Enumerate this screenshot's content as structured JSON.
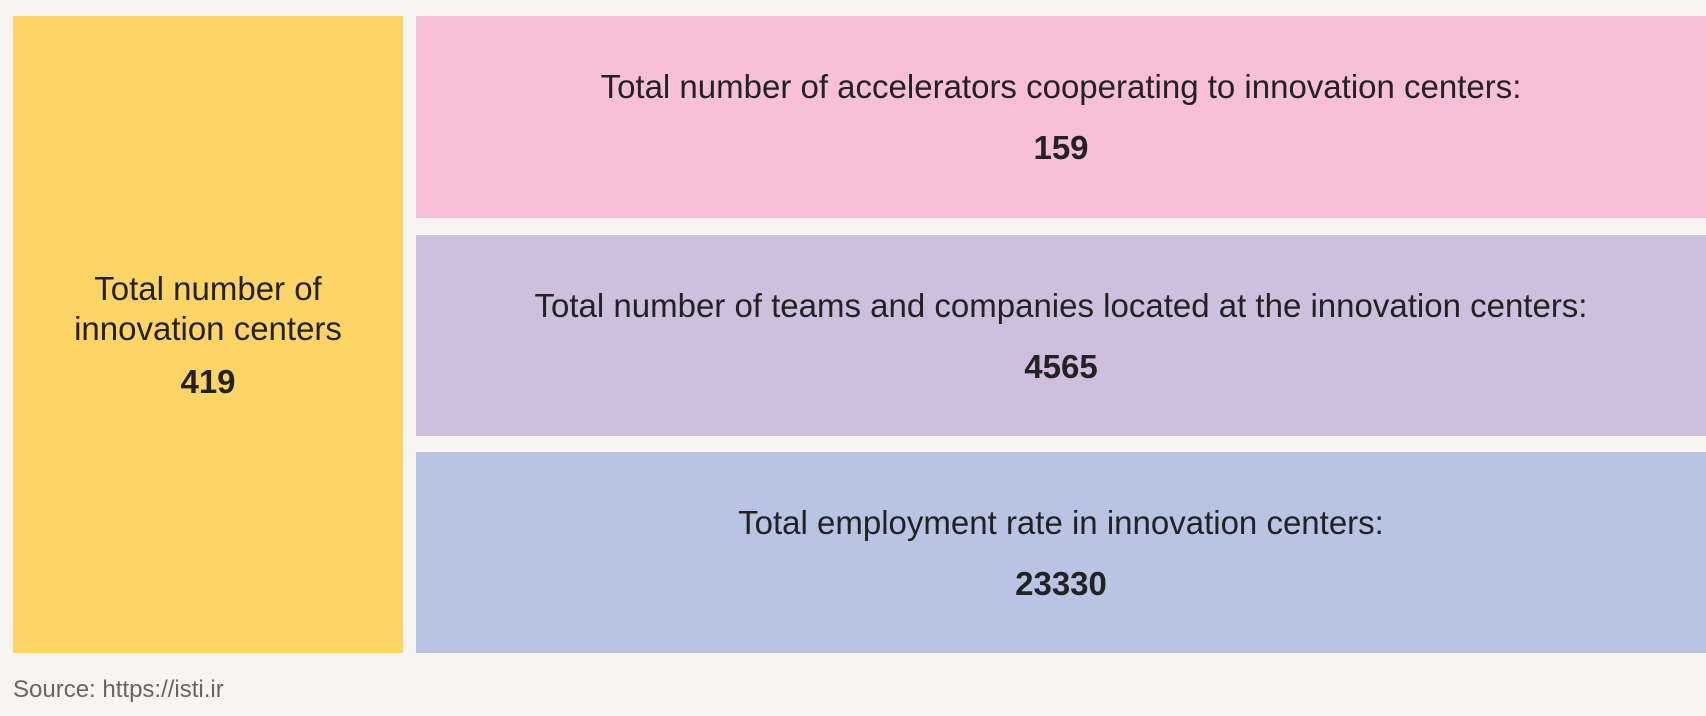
{
  "boxes": [
    {
      "label": "Total number of innovation centers",
      "value": 419
    },
    {
      "label": "Total number of accelerators cooperating to innovation centers:",
      "value": 159
    },
    {
      "label": "Total number of teams and companies located at the innovation centers:",
      "value": 4565
    },
    {
      "label": "Total employment rate in innovation centers:",
      "value": 23330
    }
  ],
  "source": "Source: https://isti.ir"
}
